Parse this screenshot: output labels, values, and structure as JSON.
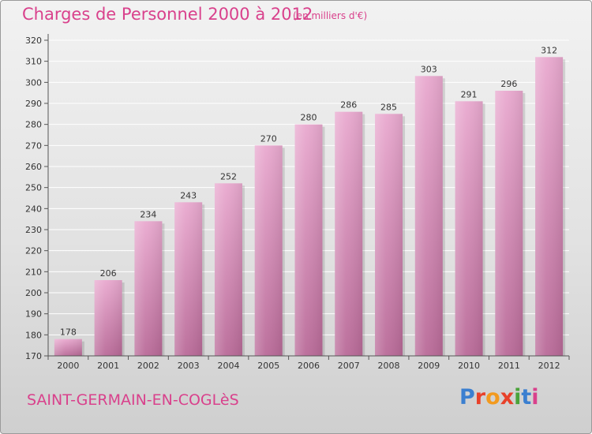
{
  "header": {
    "title": "Charges de Personnel 2000 à 2012",
    "subtitle": "(en milliers d'€)"
  },
  "footer": {
    "location": "SAINT-GERMAIN-EN-COGLèS",
    "logo_text": "Proxiti",
    "logo_colors": [
      "#3b7fd0",
      "#e8412a",
      "#f29a1f",
      "#e8412a",
      "#4aa33a",
      "#3b7fd0",
      "#d9418c"
    ]
  },
  "colors": {
    "title": "#d9418c",
    "bar_top": "#e9a9cf",
    "bar_bottom": "#b96a98",
    "grid": "#ffffff"
  },
  "chart_data": {
    "type": "bar",
    "title": "Charges de Personnel 2000 à 2012",
    "subtitle": "(en milliers d'€)",
    "categories": [
      "2000",
      "2001",
      "2002",
      "2003",
      "2004",
      "2005",
      "2006",
      "2007",
      "2008",
      "2009",
      "2010",
      "2011",
      "2012"
    ],
    "values": [
      178,
      206,
      234,
      243,
      252,
      270,
      280,
      286,
      285,
      303,
      291,
      296,
      312
    ],
    "ylim": [
      170,
      320
    ],
    "yticks": [
      170,
      180,
      190,
      200,
      210,
      220,
      230,
      240,
      250,
      260,
      270,
      280,
      290,
      300,
      310,
      320
    ],
    "grid": true,
    "data_labels": true
  }
}
